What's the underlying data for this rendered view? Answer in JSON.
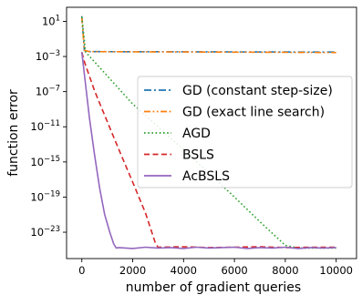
{
  "chart_data": {
    "type": "line",
    "xlabel": "number of gradient queries",
    "ylabel": "function error",
    "xlim": [
      -600,
      10800
    ],
    "ylim_log10": [
      -26,
      2.6
    ],
    "y_scale": "log",
    "grid": false,
    "legend_placement": "center-right",
    "x_ticks": [
      0,
      2000,
      4000,
      6000,
      8000,
      10000
    ],
    "x_tick_labels": [
      "0",
      "2000",
      "4000",
      "6000",
      "8000",
      "10000"
    ],
    "y_ticks_log10": [
      1,
      -3,
      -7,
      -11,
      -15,
      -19,
      -23
    ],
    "y_tick_labels": [
      {
        "base": "10",
        "exp": "1"
      },
      {
        "base": "10",
        "exp": "−3"
      },
      {
        "base": "10",
        "exp": "−7"
      },
      {
        "base": "10",
        "exp": "−11"
      },
      {
        "base": "10",
        "exp": "−15"
      },
      {
        "base": "10",
        "exp": "−19"
      },
      {
        "base": "10",
        "exp": "−23"
      }
    ],
    "series": [
      {
        "name": "GD (constant step-size)",
        "color": "#1f77b4",
        "dash": "dashdot",
        "x": [
          0,
          100,
          300,
          10000
        ],
        "y_log10": [
          1.6,
          -2.3,
          -2.45,
          -2.5
        ]
      },
      {
        "name": "GD (exact line search)",
        "color": "#ff7f0e",
        "dash": "dashdotdot",
        "x": [
          0,
          100,
          300,
          10000
        ],
        "y_log10": [
          1.5,
          -2.3,
          -2.45,
          -2.55
        ]
      },
      {
        "name": "AGD",
        "color": "#2ca02c",
        "dash": "dotted",
        "x": [
          0,
          150,
          1000,
          2000,
          3000,
          4000,
          5000,
          6000,
          7000,
          8000,
          8500,
          10000
        ],
        "y_log10": [
          1.5,
          -2.5,
          -5.2,
          -8.4,
          -11.0,
          -13.6,
          -16.3,
          -19.0,
          -21.8,
          -24.5,
          -24.8,
          -24.8
        ]
      },
      {
        "name": "BSLS",
        "color": "#d62728",
        "dash": "dashed",
        "x": [
          0,
          100,
          500,
          1000,
          1500,
          2000,
          2500,
          2900,
          3000,
          4000,
          5000,
          6000,
          7000,
          8000,
          9000,
          10000
        ],
        "y_log10": [
          -2.5,
          -3.6,
          -6.9,
          -10.4,
          -13.9,
          -17.3,
          -20.8,
          -24.3,
          -24.7,
          -24.65,
          -24.75,
          -24.7,
          -24.65,
          -24.75,
          -24.7,
          -24.7
        ]
      },
      {
        "name": "AcBSLS",
        "color": "#9467bd",
        "dash": "solid",
        "x": [
          0,
          100,
          300,
          500,
          700,
          900,
          1100,
          1250,
          1350,
          1450,
          2000,
          2500,
          3000,
          3500,
          4000,
          4500,
          5000,
          5500,
          6000,
          6500,
          7000,
          7500,
          8000,
          8500,
          9000,
          9500,
          10000
        ],
        "y_log10": [
          -2.5,
          -5.0,
          -10.0,
          -14.2,
          -18.0,
          -21.0,
          -23.0,
          -24.3,
          -24.8,
          -24.75,
          -24.85,
          -24.7,
          -24.8,
          -24.75,
          -24.85,
          -24.7,
          -24.8,
          -24.75,
          -24.7,
          -24.85,
          -24.75,
          -24.8,
          -24.7,
          -24.85,
          -24.75,
          -24.8,
          -24.75
        ]
      }
    ]
  }
}
